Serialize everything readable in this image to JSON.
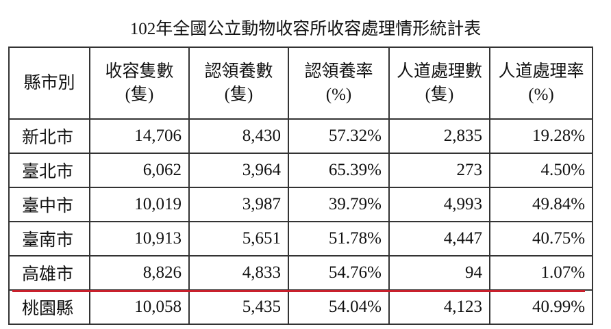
{
  "title": "102年全國公立動物收容所收容處理情形統計表",
  "table": {
    "header": [
      [
        "縣市別"
      ],
      [
        "收容隻數",
        "(隻)"
      ],
      [
        "認領養數",
        "(隻)"
      ],
      [
        "認領養率",
        "(%)"
      ],
      [
        "人道處理數",
        "(隻)"
      ],
      [
        "人道處理率",
        "(%)"
      ]
    ],
    "rows": [
      [
        "新北市",
        "14,706",
        "8,430",
        "57.32%",
        "2,835",
        "19.28%"
      ],
      [
        "臺北市",
        "6,062",
        "3,964",
        "65.39%",
        "273",
        "4.50%"
      ],
      [
        "臺中市",
        "10,019",
        "3,987",
        "39.79%",
        "4,993",
        "49.84%"
      ],
      [
        "臺南市",
        "10,913",
        "5,651",
        "51.78%",
        "4,447",
        "40.75%"
      ],
      [
        "高雄市",
        "8,826",
        "4,833",
        "54.76%",
        "94",
        "1.07%"
      ],
      [
        "桃園縣",
        "10,058",
        "5,435",
        "54.04%",
        "4,123",
        "40.99%"
      ]
    ]
  }
}
